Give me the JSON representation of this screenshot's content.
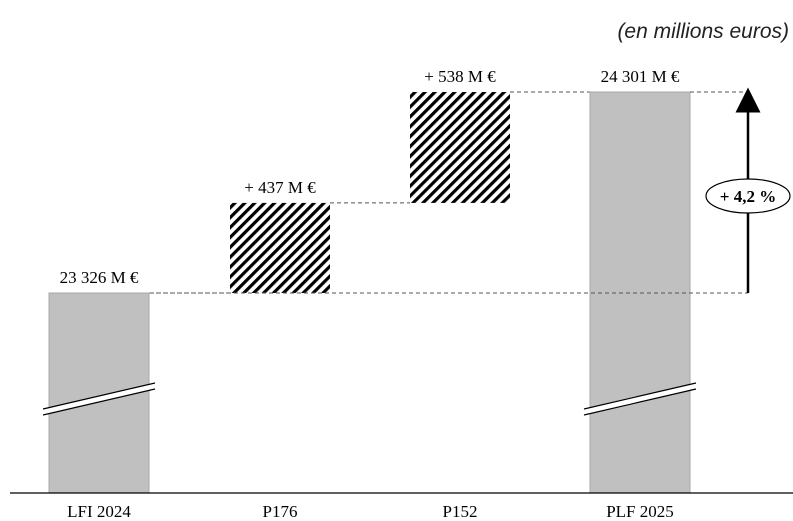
{
  "unit_note": "(en millions euros)",
  "chart_data": {
    "type": "waterfall",
    "categories": [
      "LFI 2024",
      "P176",
      "P152",
      "PLF 2025"
    ],
    "values": [
      23326,
      437,
      538,
      24301
    ],
    "kinds": [
      "total",
      "increase",
      "increase",
      "total"
    ],
    "data_labels": [
      "23 326 M €",
      "+ 437 M €",
      "+ 538 M €",
      "24 301 M €"
    ],
    "variation_label": "+ 4,2 %",
    "colors": {
      "total": "#c0c0c0",
      "increase_hatch": "#000000",
      "axis": "#000000"
    }
  }
}
